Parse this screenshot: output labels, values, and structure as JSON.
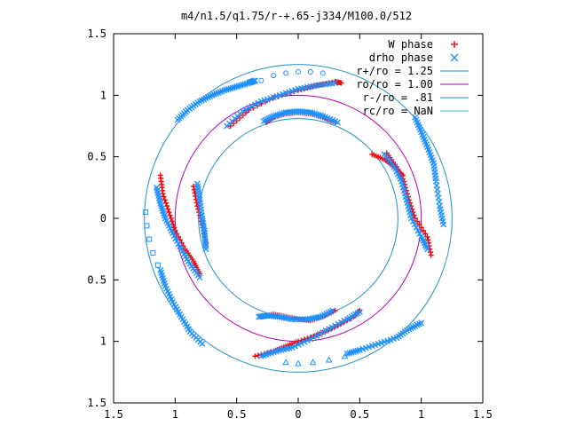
{
  "chart_data": {
    "type": "scatter",
    "title": "m4/n1.5/q1.75/r-+.65-j334/M100.0/512",
    "xlabel": "",
    "ylabel": "",
    "xlim": [
      -1.5,
      1.5
    ],
    "ylim": [
      -1.5,
      1.5
    ],
    "x_tick_labels": [
      "1.5",
      "1",
      "0.5",
      "0",
      "0.5",
      "1",
      "1.5"
    ],
    "y_tick_labels": [
      "1.5",
      "1",
      "0.5",
      "0",
      "0.5",
      "1",
      "1.5"
    ],
    "tick_values": [
      -1.5,
      -1,
      -0.5,
      0,
      0.5,
      1,
      1.5
    ],
    "grid": false,
    "legend_position": "top-right",
    "legend": [
      {
        "label": "W phase",
        "marker": "+",
        "color": "#ff0000"
      },
      {
        "label": "drho phase",
        "marker": "x",
        "color": "#1e90ff"
      },
      {
        "label": "r+/ro = 1.25",
        "marker": "line",
        "color": "#1f8fc6"
      },
      {
        "label": "ro/ro = 1.00",
        "marker": "line",
        "color": "#b000b0"
      },
      {
        "label": "r-/ro = .81",
        "marker": "line",
        "color": "#1f8fc6"
      },
      {
        "label": "rc/ro = NaN",
        "marker": "line",
        "color": "#40c0e0"
      }
    ],
    "circles": [
      {
        "name": "r+/ro = 1.25",
        "r": 1.25,
        "color": "#1f8fc6"
      },
      {
        "name": "ro/ro = 1.00",
        "r": 1.0,
        "color": "#b000b0"
      },
      {
        "name": "r-/ro = .81",
        "r": 0.81,
        "color": "#1f8fc6"
      }
    ],
    "series": [
      {
        "name": "W phase",
        "color": "#ff0000",
        "marker": "+",
        "arms": [
          {
            "points": [
              [
                -0.26,
                0.78
              ],
              [
                -0.2,
                0.82
              ],
              [
                -0.1,
                0.85
              ],
              [
                0.0,
                0.86
              ],
              [
                0.1,
                0.85
              ],
              [
                0.2,
                0.82
              ],
              [
                0.3,
                0.78
              ]
            ]
          },
          {
            "points": [
              [
                -0.55,
                0.75
              ],
              [
                -0.4,
                0.88
              ],
              [
                -0.2,
                0.98
              ],
              [
                0.0,
                1.04
              ],
              [
                0.15,
                1.08
              ],
              [
                0.3,
                1.11
              ],
              [
                0.35,
                1.1
              ]
            ]
          },
          {
            "points": [
              [
                0.72,
                0.53
              ],
              [
                0.8,
                0.42
              ],
              [
                0.86,
                0.3
              ],
              [
                0.9,
                0.15
              ],
              [
                0.95,
                0.0
              ],
              [
                1.05,
                -0.15
              ],
              [
                1.08,
                -0.3
              ]
            ]
          },
          {
            "points": [
              [
                0.6,
                0.52
              ],
              [
                0.7,
                0.48
              ],
              [
                0.78,
                0.42
              ],
              [
                0.85,
                0.35
              ]
            ]
          },
          {
            "points": [
              [
                0.3,
                -0.75
              ],
              [
                0.2,
                -0.8
              ],
              [
                0.1,
                -0.83
              ],
              [
                0.0,
                -0.82
              ],
              [
                -0.1,
                -0.8
              ],
              [
                -0.2,
                -0.78
              ],
              [
                -0.3,
                -0.8
              ]
            ]
          },
          {
            "points": [
              [
                -0.35,
                -1.12
              ],
              [
                -0.2,
                -1.08
              ],
              [
                -0.1,
                -1.04
              ],
              [
                0.0,
                -1.0
              ],
              [
                0.15,
                -0.95
              ],
              [
                0.3,
                -0.88
              ],
              [
                0.45,
                -0.8
              ],
              [
                0.5,
                -0.75
              ]
            ]
          },
          {
            "points": [
              [
                -1.12,
                0.35
              ],
              [
                -1.1,
                0.2
              ],
              [
                -1.05,
                0.05
              ],
              [
                -1.0,
                -0.1
              ],
              [
                -0.92,
                -0.25
              ],
              [
                -0.85,
                -0.35
              ],
              [
                -0.8,
                -0.45
              ]
            ]
          },
          {
            "points": [
              [
                -0.85,
                0.26
              ],
              [
                -0.82,
                0.1
              ],
              [
                -0.78,
                -0.05
              ],
              [
                -0.75,
                -0.2
              ]
            ]
          }
        ]
      },
      {
        "name": "drho phase",
        "color": "#1e90ff",
        "marker": "x",
        "arms": [
          {
            "points": [
              [
                -0.28,
                0.79
              ],
              [
                -0.2,
                0.83
              ],
              [
                -0.1,
                0.86
              ],
              [
                0.0,
                0.87
              ],
              [
                0.1,
                0.86
              ],
              [
                0.2,
                0.83
              ],
              [
                0.32,
                0.78
              ]
            ]
          },
          {
            "points": [
              [
                -0.58,
                0.75
              ],
              [
                -0.45,
                0.87
              ],
              [
                -0.3,
                0.95
              ],
              [
                -0.15,
                1.0
              ],
              [
                0.0,
                1.05
              ],
              [
                0.15,
                1.08
              ],
              [
                0.3,
                1.1
              ]
            ]
          },
          {
            "points": [
              [
                -0.98,
                0.8
              ],
              [
                -0.9,
                0.88
              ],
              [
                -0.8,
                0.95
              ],
              [
                -0.7,
                1.0
              ],
              [
                -0.6,
                1.04
              ],
              [
                -0.5,
                1.07
              ],
              [
                -0.4,
                1.1
              ],
              [
                -0.35,
                1.12
              ]
            ]
          },
          {
            "points": [
              [
                0.7,
                0.52
              ],
              [
                0.78,
                0.42
              ],
              [
                0.84,
                0.3
              ],
              [
                0.88,
                0.15
              ],
              [
                0.92,
                0.0
              ],
              [
                1.0,
                -0.15
              ],
              [
                1.05,
                -0.25
              ]
            ]
          },
          {
            "points": [
              [
                0.95,
                0.82
              ],
              [
                1.0,
                0.7
              ],
              [
                1.05,
                0.58
              ],
              [
                1.1,
                0.45
              ],
              [
                1.12,
                0.3
              ],
              [
                1.15,
                0.1
              ],
              [
                1.18,
                -0.05
              ]
            ]
          },
          {
            "points": [
              [
                0.28,
                -0.75
              ],
              [
                0.18,
                -0.8
              ],
              [
                0.08,
                -0.82
              ],
              [
                -0.05,
                -0.82
              ],
              [
                -0.15,
                -0.8
              ],
              [
                -0.25,
                -0.79
              ],
              [
                -0.32,
                -0.8
              ]
            ]
          },
          {
            "points": [
              [
                -0.3,
                -1.12
              ],
              [
                -0.18,
                -1.08
              ],
              [
                -0.05,
                -1.05
              ],
              [
                0.1,
                -0.98
              ],
              [
                0.25,
                -0.9
              ],
              [
                0.4,
                -0.82
              ],
              [
                0.5,
                -0.76
              ]
            ]
          },
          {
            "points": [
              [
                1.0,
                -0.85
              ],
              [
                0.9,
                -0.9
              ],
              [
                0.8,
                -0.97
              ],
              [
                0.65,
                -1.02
              ],
              [
                0.5,
                -1.07
              ],
              [
                0.4,
                -1.1
              ]
            ]
          },
          {
            "points": [
              [
                -1.15,
                0.25
              ],
              [
                -1.12,
                0.12
              ],
              [
                -1.08,
                0.0
              ],
              [
                -1.02,
                -0.12
              ],
              [
                -0.95,
                -0.25
              ],
              [
                -0.88,
                -0.37
              ],
              [
                -0.8,
                -0.48
              ]
            ]
          },
          {
            "points": [
              [
                -0.82,
                0.28
              ],
              [
                -0.8,
                0.15
              ],
              [
                -0.78,
                0.0
              ],
              [
                -0.76,
                -0.12
              ],
              [
                -0.75,
                -0.25
              ]
            ]
          },
          {
            "points": [
              [
                -1.12,
                -0.42
              ],
              [
                -1.08,
                -0.55
              ],
              [
                -1.02,
                -0.68
              ],
              [
                -0.95,
                -0.8
              ],
              [
                -0.88,
                -0.92
              ],
              [
                -0.78,
                -1.02
              ]
            ]
          }
        ]
      },
      {
        "name": "open markers",
        "color": "#1e90ff",
        "marker": "circle",
        "arms": [
          {
            "points": [
              [
                -0.3,
                1.12
              ],
              [
                -0.2,
                1.16
              ],
              [
                -0.1,
                1.18
              ],
              [
                0.0,
                1.19
              ],
              [
                0.1,
                1.19
              ],
              [
                0.2,
                1.18
              ]
            ]
          }
        ]
      },
      {
        "name": "open squares",
        "color": "#1e90ff",
        "marker": "square",
        "arms": [
          {
            "points": [
              [
                -1.24,
                0.05
              ],
              [
                -1.23,
                -0.06
              ],
              [
                -1.21,
                -0.17
              ],
              [
                -1.18,
                -0.28
              ],
              [
                -1.14,
                -0.38
              ]
            ]
          }
        ]
      },
      {
        "name": "open triangles",
        "color": "#1e90ff",
        "marker": "triangle",
        "arms": [
          {
            "points": [
              [
                -0.1,
                -1.17
              ],
              [
                0.0,
                -1.18
              ],
              [
                0.12,
                -1.17
              ],
              [
                0.25,
                -1.15
              ],
              [
                0.38,
                -1.12
              ]
            ]
          }
        ]
      }
    ]
  }
}
